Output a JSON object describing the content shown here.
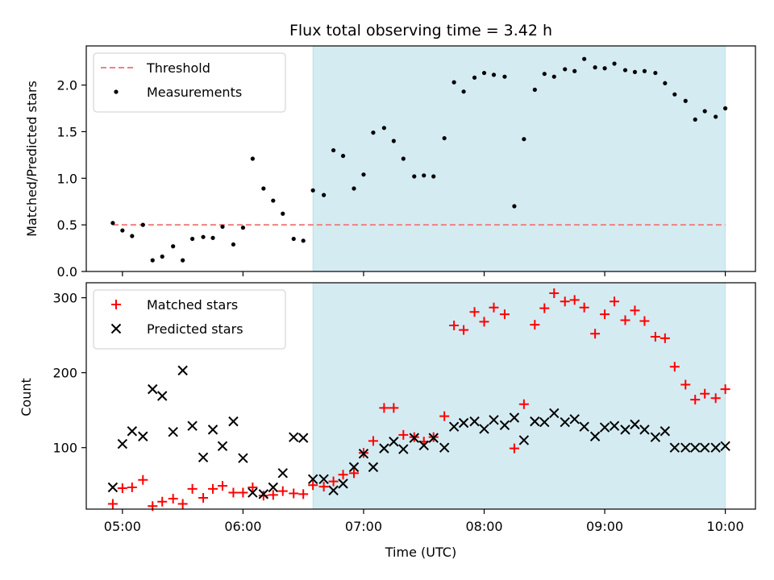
{
  "chart_data": {
    "title": "Flux total observing time = 3.42 h",
    "xlabel": "Time (UTC)",
    "x_unit": "hours UTC",
    "xlim": [
      4.7,
      10.25
    ],
    "x_ticks": [
      5,
      6,
      7,
      8,
      9,
      10
    ],
    "x_tick_labels": [
      "05:00",
      "06:00",
      "07:00",
      "08:00",
      "09:00",
      "10:00"
    ],
    "shaded_region": {
      "x_start": 6.58,
      "x_end": 10.0,
      "color": "#add8e6"
    },
    "panels": [
      {
        "type": "scatter",
        "ylabel": "Matched/Predicted stars",
        "ylim": [
          0,
          2.42
        ],
        "y_ticks": [
          0.0,
          0.5,
          1.0,
          1.5,
          2.0
        ],
        "y_tick_labels": [
          "0.0",
          "0.5",
          "1.0",
          "1.5",
          "2.0"
        ],
        "legend": {
          "position": "top-left"
        },
        "threshold": {
          "name": "Threshold",
          "value": 0.5,
          "x_start": 4.92,
          "x_end": 10.0,
          "color": "#f08080"
        },
        "series": [
          {
            "name": "Measurements",
            "marker": "dot",
            "color": "#000000",
            "x": [
              4.92,
              5.0,
              5.08,
              5.17,
              5.25,
              5.33,
              5.42,
              5.5,
              5.58,
              5.67,
              5.75,
              5.83,
              5.92,
              6.0,
              6.08,
              6.17,
              6.25,
              6.33,
              6.42,
              6.5,
              6.58,
              6.67,
              6.75,
              6.83,
              6.92,
              7.0,
              7.08,
              7.17,
              7.25,
              7.33,
              7.42,
              7.5,
              7.58,
              7.67,
              7.75,
              7.83,
              7.92,
              8.0,
              8.08,
              8.17,
              8.25,
              8.33,
              8.42,
              8.5,
              8.58,
              8.67,
              8.75,
              8.83,
              8.92,
              9.0,
              9.08,
              9.17,
              9.25,
              9.33,
              9.42,
              9.5,
              9.58,
              9.67,
              9.75,
              9.83,
              9.92,
              10.0
            ],
            "y": [
              0.52,
              0.44,
              0.38,
              0.5,
              0.12,
              0.16,
              0.27,
              0.12,
              0.35,
              0.37,
              0.36,
              0.48,
              0.29,
              0.47,
              1.21,
              0.89,
              0.76,
              0.62,
              0.35,
              0.33,
              0.87,
              0.82,
              1.3,
              1.24,
              0.89,
              1.04,
              1.49,
              1.54,
              1.4,
              1.21,
              1.02,
              1.03,
              1.02,
              1.43,
              2.03,
              1.93,
              2.08,
              2.13,
              2.11,
              2.09,
              0.7,
              1.42,
              1.95,
              2.12,
              2.09,
              2.17,
              2.15,
              2.28,
              2.19,
              2.18,
              2.23,
              2.16,
              2.14,
              2.15,
              2.13,
              2.02,
              1.9,
              1.83,
              1.63,
              1.72,
              1.66,
              1.75
            ]
          }
        ]
      },
      {
        "type": "scatter",
        "ylabel": "Count",
        "ylim": [
          18,
          320
        ],
        "y_ticks": [
          100,
          200,
          300
        ],
        "y_tick_labels": [
          "100",
          "200",
          "300"
        ],
        "legend": {
          "position": "top-left"
        },
        "series": [
          {
            "name": "Matched stars",
            "marker": "plus",
            "color": "#ff0000",
            "x": [
              4.92,
              5.0,
              5.08,
              5.17,
              5.25,
              5.33,
              5.42,
              5.5,
              5.58,
              5.67,
              5.75,
              5.83,
              5.92,
              6.0,
              6.08,
              6.17,
              6.25,
              6.33,
              6.42,
              6.5,
              6.58,
              6.67,
              6.75,
              6.83,
              6.92,
              7.0,
              7.08,
              7.17,
              7.25,
              7.33,
              7.42,
              7.5,
              7.58,
              7.67,
              7.75,
              7.83,
              7.92,
              8.0,
              8.08,
              8.17,
              8.25,
              8.33,
              8.42,
              8.5,
              8.58,
              8.67,
              8.75,
              8.83,
              8.92,
              9.0,
              9.08,
              9.17,
              9.25,
              9.33,
              9.42,
              9.5,
              9.58,
              9.67,
              9.75,
              9.83,
              9.92,
              10.0
            ],
            "y": [
              25,
              46,
              47,
              57,
              22,
              28,
              32,
              25,
              45,
              33,
              45,
              49,
              40,
              40,
              47,
              36,
              37,
              42,
              39,
              38,
              50,
              48,
              55,
              64,
              66,
              93,
              109,
              153,
              153,
              117,
              114,
              108,
              114,
              142,
              263,
              257,
              281,
              268,
              287,
              278,
              99,
              158,
              264,
              286,
              306,
              295,
              297,
              287,
              252,
              278,
              295,
              270,
              283,
              269,
              248,
              246,
              208,
              184,
              164,
              172,
              166,
              178
            ]
          },
          {
            "name": "Predicted stars",
            "marker": "x",
            "color": "#000000",
            "x": [
              4.92,
              5.0,
              5.08,
              5.17,
              5.25,
              5.33,
              5.42,
              5.5,
              5.58,
              5.67,
              5.75,
              5.83,
              5.92,
              6.0,
              6.08,
              6.17,
              6.25,
              6.33,
              6.42,
              6.5,
              6.58,
              6.67,
              6.75,
              6.83,
              6.92,
              7.0,
              7.08,
              7.17,
              7.25,
              7.33,
              7.42,
              7.5,
              7.58,
              7.67,
              7.75,
              7.83,
              7.92,
              8.0,
              8.08,
              8.17,
              8.25,
              8.33,
              8.42,
              8.5,
              8.58,
              8.67,
              8.75,
              8.83,
              8.92,
              9.0,
              9.08,
              9.17,
              9.25,
              9.33,
              9.42,
              9.5,
              9.58,
              9.67,
              9.75,
              9.83,
              9.92,
              10.0
            ],
            "y": [
              47,
              105,
              122,
              115,
              178,
              169,
              121,
              203,
              129,
              87,
              124,
              102,
              135,
              86,
              40,
              38,
              47,
              66,
              114,
              113,
              58,
              58,
              43,
              52,
              74,
              92,
              74,
              99,
              108,
              98,
              113,
              103,
              113,
              100,
              128,
              133,
              135,
              125,
              137,
              130,
              140,
              110,
              135,
              134,
              146,
              134,
              138,
              128,
              115,
              127,
              129,
              124,
              131,
              124,
              114,
              122,
              100,
              100,
              100,
              100,
              100,
              102
            ]
          }
        ]
      }
    ]
  }
}
